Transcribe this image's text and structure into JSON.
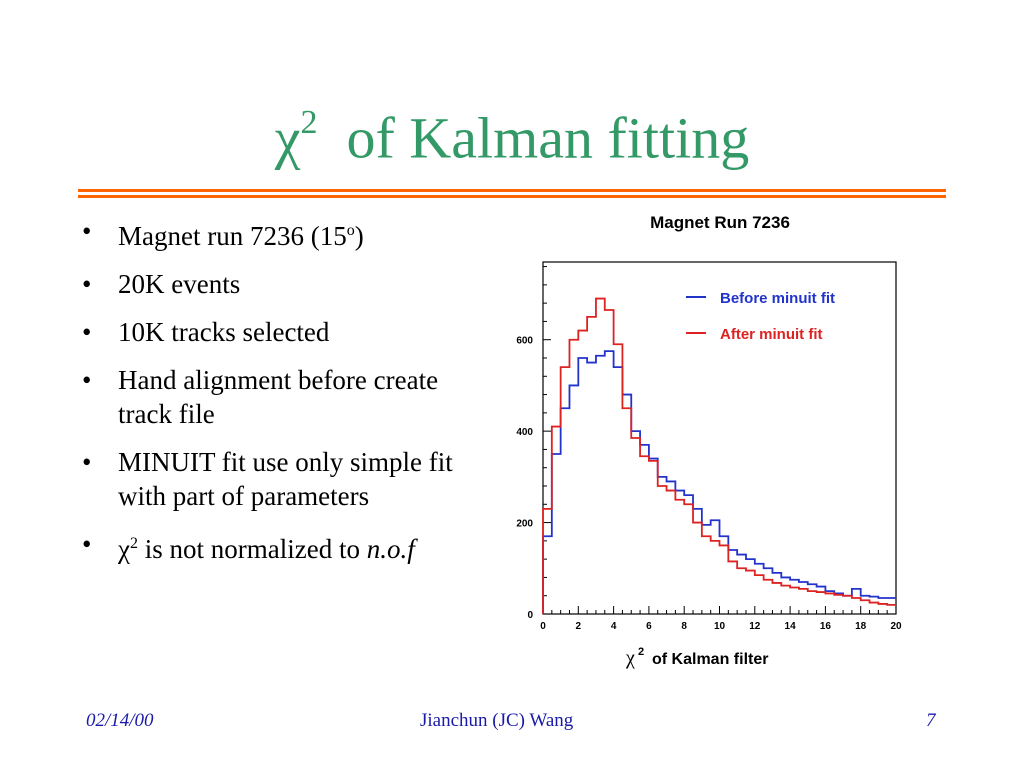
{
  "title": {
    "symbol": "χ",
    "superscript": "2",
    "text": "of Kalman fitting"
  },
  "bullets": [
    {
      "parts": [
        "Magnet run 7236 (15",
        "o",
        ")"
      ]
    },
    {
      "text": "20K events"
    },
    {
      "text": "10K tracks selected"
    },
    {
      "text": "Hand alignment before create track file"
    },
    {
      "text": "MINUIT fit use only simple fit with part of parameters"
    },
    {
      "chi": "χ",
      "sup": "2",
      "rest": " is not normalized to ",
      "italic": "n.o.f"
    }
  ],
  "footer": {
    "date": "02/14/00",
    "author": "Jianchun (JC) Wang",
    "page": "7"
  },
  "colors": {
    "title": "#339966",
    "rule": "#ff6600",
    "footer": "#1a1aaa",
    "before": "#2233cc",
    "after": "#dd2222"
  },
  "chart_data": {
    "type": "line",
    "title": "Magnet Run 7236",
    "xlabel": "χ2 of Kalman filter",
    "ylabel": "",
    "xlim": [
      0,
      20
    ],
    "ylim": [
      0,
      770
    ],
    "x_ticks": [
      0,
      2,
      4,
      6,
      8,
      10,
      12,
      14,
      16,
      18,
      20
    ],
    "y_ticks": [
      0,
      200,
      400,
      600
    ],
    "legend_position": "top-right",
    "bin_width": 0.5,
    "series": [
      {
        "name": "Before minuit fit",
        "color": "#2233cc",
        "values": [
          170,
          350,
          450,
          500,
          560,
          550,
          565,
          575,
          540,
          480,
          400,
          370,
          340,
          300,
          290,
          270,
          260,
          230,
          195,
          205,
          170,
          140,
          130,
          120,
          110,
          100,
          90,
          80,
          75,
          70,
          65,
          60,
          50,
          45,
          40,
          55,
          40,
          38,
          35,
          35
        ]
      },
      {
        "name": "After minuit fit",
        "color": "#dd2222",
        "values": [
          230,
          410,
          540,
          600,
          620,
          650,
          690,
          665,
          590,
          450,
          385,
          345,
          335,
          280,
          270,
          250,
          240,
          200,
          170,
          160,
          150,
          115,
          100,
          95,
          85,
          75,
          68,
          62,
          58,
          55,
          50,
          48,
          45,
          42,
          40,
          35,
          30,
          25,
          22,
          20
        ]
      }
    ]
  }
}
